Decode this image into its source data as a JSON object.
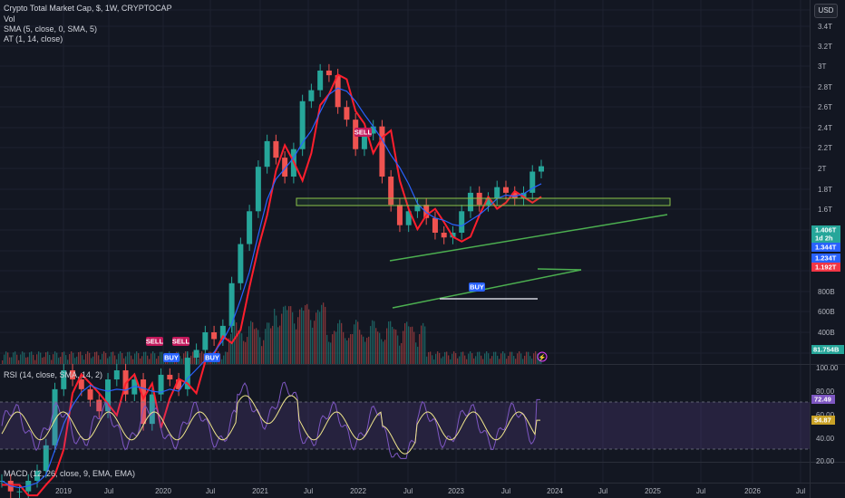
{
  "legend": {
    "title": "Crypto Total Market Cap, $, 1W, CRYPTOCAP",
    "vol": "Vol",
    "sma": "SMA (5, close, 0, SMA, 5)",
    "at": "AT (1, 14, close)",
    "rsi": "RSI (14, close, SMA, 14, 2)",
    "macd": "MACD (12, 26, close, 9, EMA, EMA)"
  },
  "currency_button": "USD",
  "colors": {
    "background": "#131722",
    "up": "#26a69a",
    "down": "#ef5350",
    "at_line": "#ff1e2d",
    "channel": "#4caf50",
    "rsi_line": "#7e57c2",
    "rsi_ma": "#f0e68c"
  },
  "chart_data": [
    {
      "type": "candlestick",
      "title": "Crypto Total Market Cap, $, 1W, CRYPTOCAP",
      "y_scale": "log",
      "y_ticks": [
        "3.4T",
        "3.2T",
        "3T",
        "2.8T",
        "2.6T",
        "2.4T",
        "2.2T",
        "2T",
        "1.8T",
        "1.6T",
        "800B",
        "600B",
        "400B"
      ],
      "x_ticks": [
        "2019",
        "Jul",
        "2020",
        "Jul",
        "2021",
        "Jul",
        "2022",
        "Jul",
        "2023",
        "Jul",
        "2024",
        "Jul",
        "2025",
        "Jul",
        "2026",
        "Jul"
      ],
      "series": [
        {
          "name": "Crypto Total Market Cap",
          "approx_weekly_close_T": [
            0.13,
            0.12,
            0.12,
            0.13,
            0.14,
            0.17,
            0.26,
            0.3,
            0.28,
            0.26,
            0.24,
            0.22,
            0.28,
            0.3,
            0.25,
            0.28,
            0.2,
            0.25,
            0.29,
            0.28,
            0.26,
            0.33,
            0.35,
            0.4,
            0.38,
            0.42,
            0.58,
            0.78,
            1.0,
            1.4,
            1.7,
            1.5,
            1.3,
            1.6,
            2.3,
            2.5,
            2.9,
            2.8,
            2.2,
            2.0,
            1.6,
            1.8,
            1.9,
            1.3,
            1.05,
            0.9,
            1.0,
            1.05,
            0.95,
            0.85,
            0.82,
            0.85,
            1.0,
            1.15,
            1.05,
            1.1,
            1.2,
            1.15,
            1.1,
            1.15,
            1.35,
            1.406
          ]
        }
      ],
      "price_labels": [
        "1.406T",
        "1d 2h",
        "1.344T",
        "1.234T",
        "1.192T"
      ],
      "volume_label": "81.754B",
      "signals": [
        {
          "label": "SELL",
          "near": "2019"
        },
        {
          "label": "SELL",
          "near": "2020"
        },
        {
          "label": "BUY",
          "near": "2020"
        },
        {
          "label": "BUY",
          "near": "2020 Jul"
        },
        {
          "label": "SELL",
          "near": "2021 Nov"
        },
        {
          "label": "BUY",
          "near": "2023"
        }
      ]
    },
    {
      "type": "line",
      "title": "RSI (14, close, SMA, 14, 2)",
      "y_ticks": [
        "100.00",
        "80.00",
        "60.00",
        "40.00",
        "20.00"
      ],
      "ylim": [
        20,
        100
      ],
      "series": [
        {
          "name": "RSI",
          "last": 72.49
        },
        {
          "name": "RSI MA",
          "last": 54.87
        }
      ],
      "value_labels": [
        "72.49",
        "54.87"
      ]
    }
  ]
}
